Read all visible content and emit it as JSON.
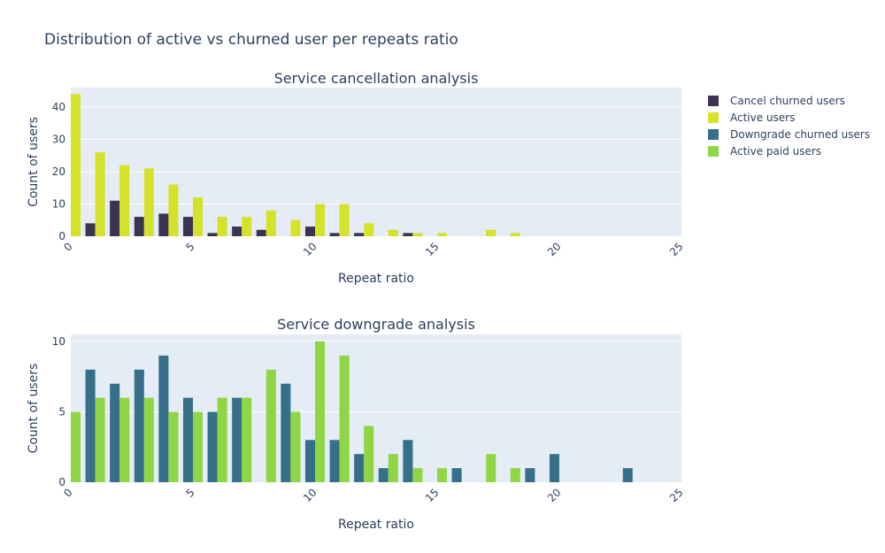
{
  "title": "Distribution of active vs churned user per repeats ratio",
  "colors": {
    "cancel_churned": "#3b3351",
    "active_users": "#d5e22a",
    "downgrade_churned": "#366f88",
    "active_paid": "#8fd645",
    "plot_bg": "#e5ecf6",
    "grid": "#ffffff",
    "text": "#2a3f5f"
  },
  "legend": [
    {
      "label": "Cancel churned users",
      "color_key": "cancel_churned"
    },
    {
      "label": "Active users",
      "color_key": "active_users"
    },
    {
      "label": "Downgrade churned users",
      "color_key": "downgrade_churned"
    },
    {
      "label": "Active paid users",
      "color_key": "active_paid"
    }
  ],
  "chart_data": [
    {
      "type": "bar",
      "title": "Service cancellation analysis",
      "xlabel": "Repeat ratio",
      "ylabel": "Count of users",
      "xlim": [
        0,
        25
      ],
      "ylim": [
        0,
        46
      ],
      "xticks": [
        0,
        5,
        10,
        15,
        20,
        25
      ],
      "yticks": [
        0,
        10,
        20,
        30,
        40
      ],
      "series": [
        {
          "name": "Cancel churned users",
          "color_key": "cancel_churned",
          "x": [
            1,
            2,
            3,
            4,
            5,
            6,
            7,
            8,
            10,
            11,
            12,
            14
          ],
          "values": [
            4,
            11,
            6,
            7,
            6,
            1,
            3,
            2,
            3,
            1,
            1,
            1
          ]
        },
        {
          "name": "Active users",
          "color_key": "active_users",
          "x": [
            0,
            1,
            2,
            3,
            4,
            5,
            6,
            7,
            8,
            9,
            10,
            11,
            12,
            13,
            14,
            15,
            17,
            18
          ],
          "values": [
            44,
            26,
            22,
            21,
            16,
            12,
            6,
            6,
            8,
            5,
            10,
            10,
            4,
            2,
            1,
            1,
            2,
            1
          ]
        }
      ]
    },
    {
      "type": "bar",
      "title": "Service downgrade analysis",
      "xlabel": "Repeat ratio",
      "ylabel": "Count of users",
      "xlim": [
        0,
        25
      ],
      "ylim": [
        0,
        10.5
      ],
      "xticks": [
        0,
        5,
        10,
        15,
        20,
        25
      ],
      "yticks": [
        0,
        5,
        10
      ],
      "series": [
        {
          "name": "Downgrade churned users",
          "color_key": "downgrade_churned",
          "x": [
            1,
            2,
            3,
            4,
            5,
            6,
            7,
            9,
            10,
            11,
            12,
            13,
            14,
            16,
            19,
            20,
            23
          ],
          "values": [
            8,
            7,
            8,
            9,
            6,
            5,
            6,
            7,
            3,
            3,
            2,
            1,
            3,
            1,
            1,
            2,
            1
          ]
        },
        {
          "name": "Active paid users",
          "color_key": "active_paid",
          "x": [
            0,
            1,
            2,
            3,
            4,
            5,
            6,
            7,
            8,
            9,
            10,
            11,
            12,
            13,
            14,
            15,
            17,
            18
          ],
          "values": [
            5,
            6,
            6,
            6,
            5,
            5,
            6,
            6,
            8,
            5,
            10,
            9,
            4,
            2,
            1,
            1,
            2,
            1
          ]
        }
      ]
    }
  ]
}
